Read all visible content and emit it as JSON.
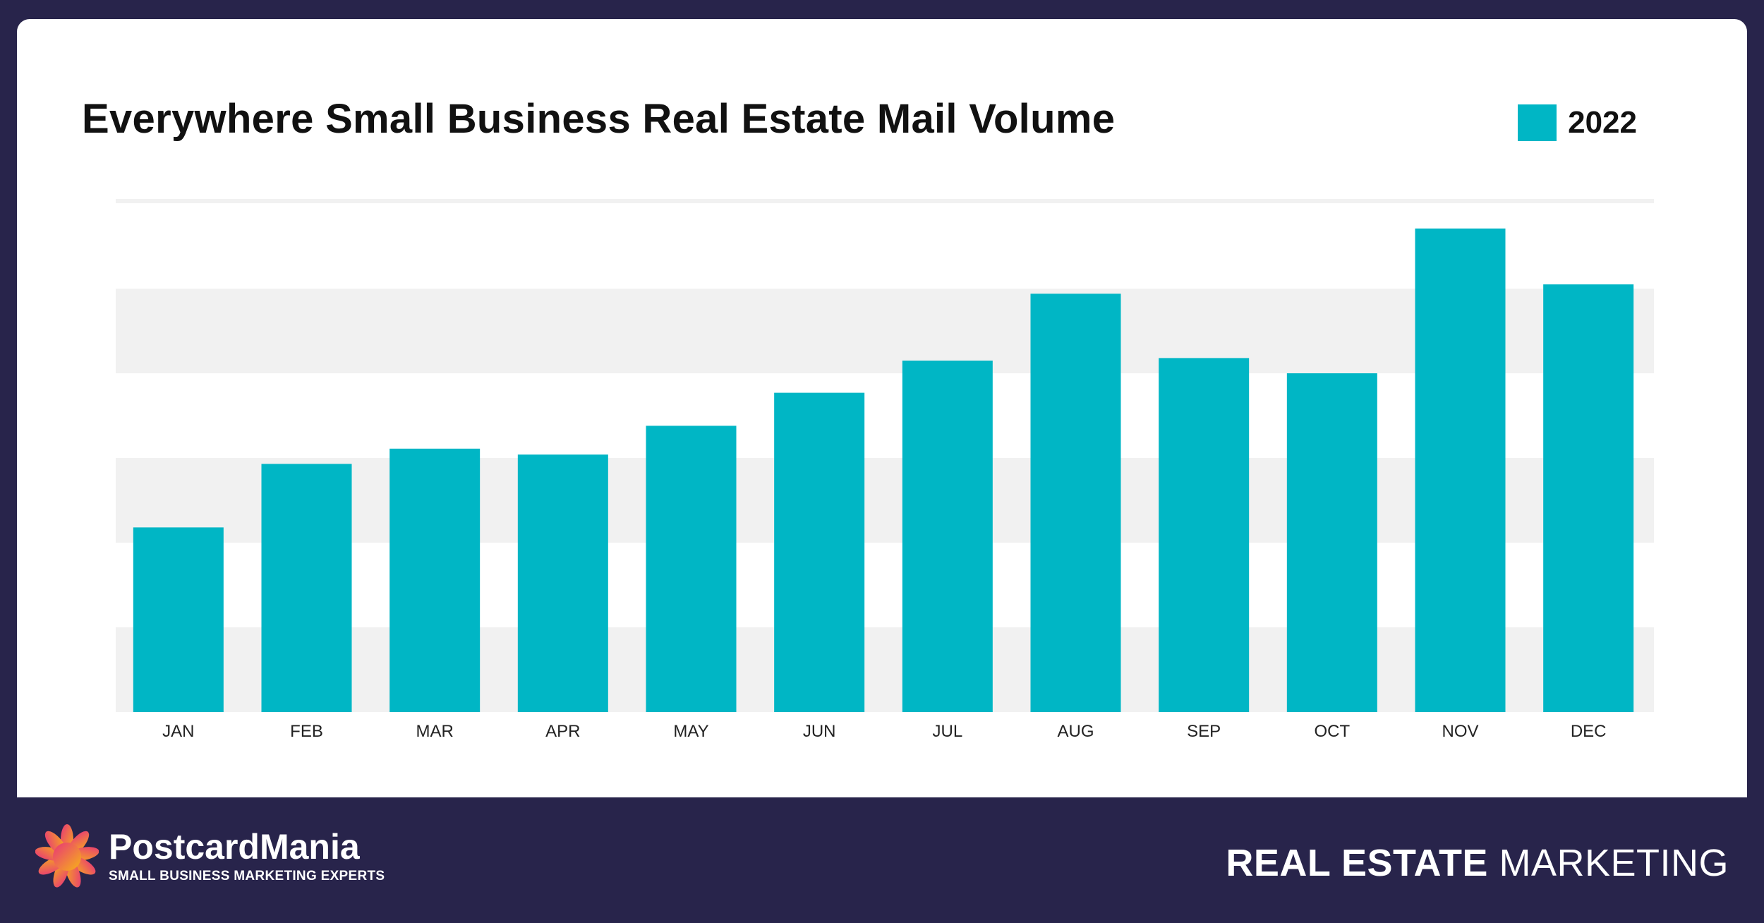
{
  "brand": {
    "name": "PostcardMania",
    "tagline": "SMALL BUSINESS MARKETING EXPERTS"
  },
  "footer": {
    "strong": "REAL ESTATE",
    "light": "MARKETING"
  },
  "colors": {
    "bar": "#00b6c5",
    "background": "#28244b",
    "band": "#f1f1f1"
  },
  "chart_data": {
    "type": "bar",
    "title": "Everywhere Small Business Real Estate Mail Volume",
    "categories": [
      "JAN",
      "FEB",
      "MAR",
      "APR",
      "MAY",
      "JUN",
      "JUL",
      "AUG",
      "SEP",
      "OCT",
      "NOV",
      "DEC"
    ],
    "series": [
      {
        "name": "2022",
        "values": [
          2.18,
          2.93,
          3.11,
          3.04,
          3.38,
          3.77,
          4.15,
          4.94,
          4.18,
          4.0,
          5.71,
          5.05
        ]
      }
    ],
    "ylim": [
      0,
      6
    ],
    "y_tick_labels": "none",
    "grid": "alternating horizontal bands",
    "legend": "top-right"
  }
}
